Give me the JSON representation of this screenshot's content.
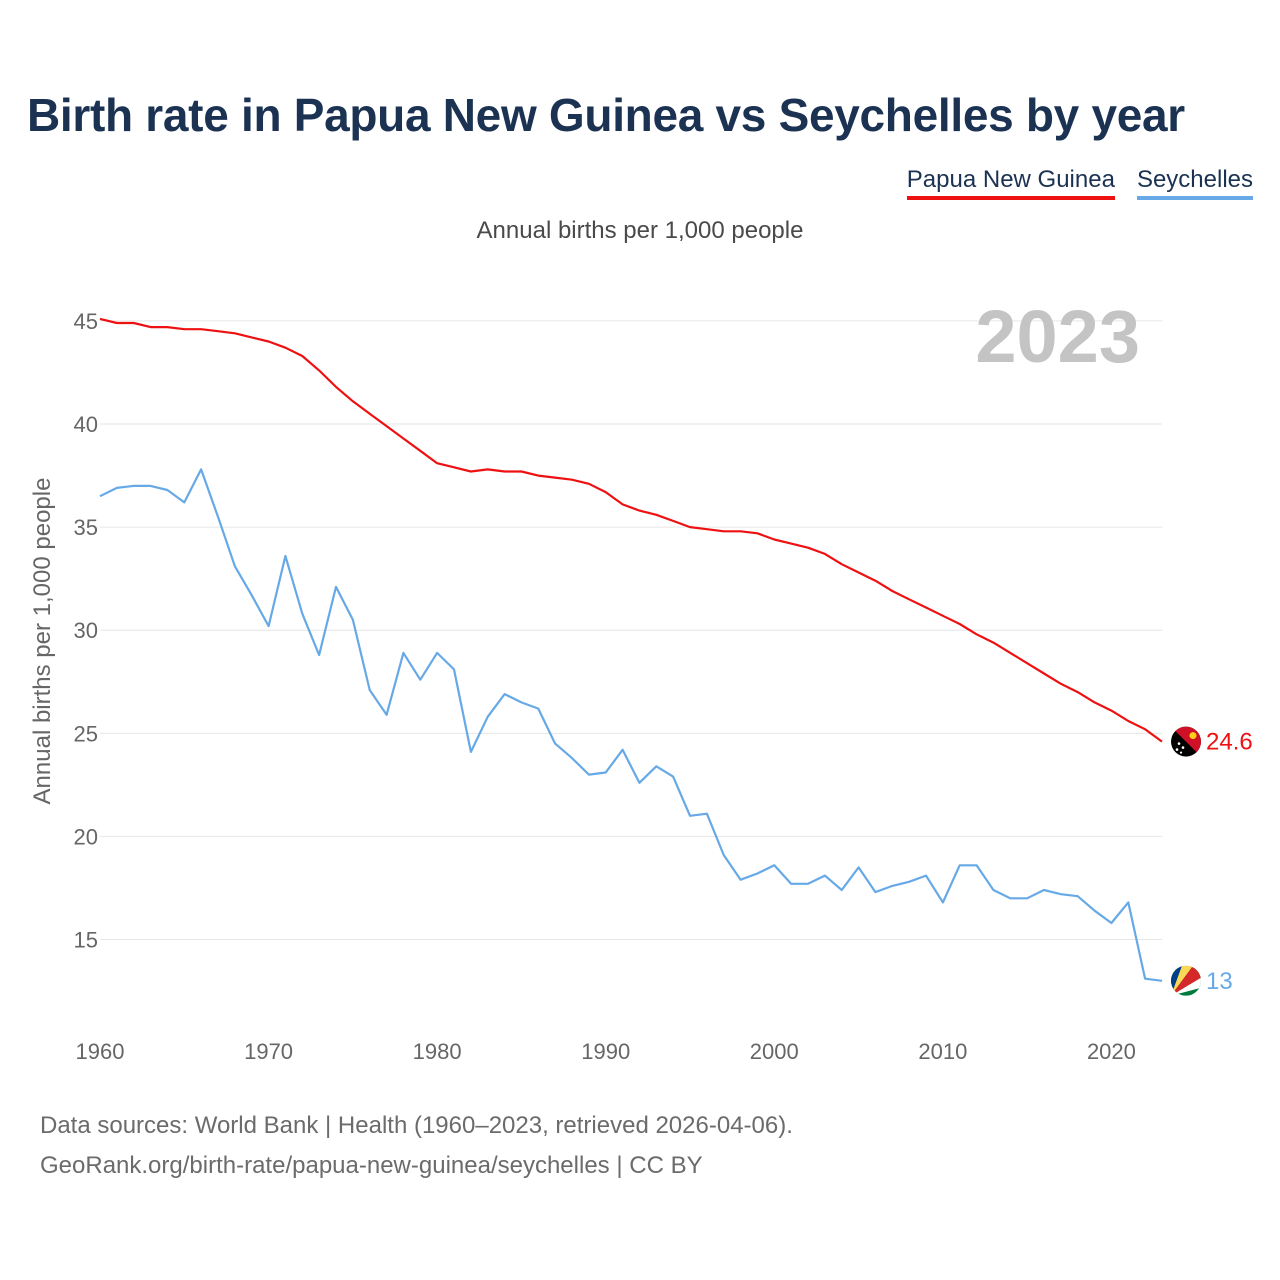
{
  "chart_data": {
    "type": "line",
    "title": "Birth rate in Papua New Guinea vs Seychelles by year",
    "subtitle": "Annual births per 1,000 people",
    "ylabel": "Annual births per 1,000 people",
    "xlabel": "",
    "year_label": "2023",
    "xlim": [
      1960,
      2023
    ],
    "ylim": [
      11,
      46.5
    ],
    "x_ticks": [
      1960,
      1970,
      1980,
      1990,
      2000,
      2010,
      2020
    ],
    "y_ticks": [
      15,
      20,
      25,
      30,
      35,
      40,
      45
    ],
    "grid": true,
    "legend_position": "top-right",
    "x": [
      1960,
      1961,
      1962,
      1963,
      1964,
      1965,
      1966,
      1967,
      1968,
      1969,
      1970,
      1971,
      1972,
      1973,
      1974,
      1975,
      1976,
      1977,
      1978,
      1979,
      1980,
      1981,
      1982,
      1983,
      1984,
      1985,
      1986,
      1987,
      1988,
      1989,
      1990,
      1991,
      1992,
      1993,
      1994,
      1995,
      1996,
      1997,
      1998,
      1999,
      2000,
      2001,
      2002,
      2003,
      2004,
      2005,
      2006,
      2007,
      2008,
      2009,
      2010,
      2011,
      2012,
      2013,
      2014,
      2015,
      2016,
      2017,
      2018,
      2019,
      2020,
      2021,
      2022,
      2023
    ],
    "series": [
      {
        "name": "Papua New Guinea",
        "color": "#ee1111",
        "end_label": "24.6",
        "values": [
          45.1,
          44.9,
          44.9,
          44.7,
          44.7,
          44.6,
          44.6,
          44.5,
          44.4,
          44.2,
          44.0,
          43.7,
          43.3,
          42.6,
          41.8,
          41.1,
          40.5,
          39.9,
          39.3,
          38.7,
          38.1,
          37.9,
          37.7,
          37.8,
          37.7,
          37.7,
          37.5,
          37.4,
          37.3,
          37.1,
          36.7,
          36.1,
          35.8,
          35.6,
          35.3,
          35.0,
          34.9,
          34.8,
          34.8,
          34.7,
          34.4,
          34.2,
          34.0,
          33.7,
          33.2,
          32.8,
          32.4,
          31.9,
          31.5,
          31.1,
          30.7,
          30.3,
          29.8,
          29.4,
          28.9,
          28.4,
          27.9,
          27.4,
          27.0,
          26.5,
          26.1,
          25.6,
          25.2,
          24.6
        ]
      },
      {
        "name": "Seychelles",
        "color": "#66a9e6",
        "end_label": "13",
        "values": [
          36.5,
          36.9,
          37.0,
          37.0,
          36.8,
          36.2,
          37.8,
          35.5,
          33.1,
          31.7,
          30.2,
          33.6,
          30.8,
          28.8,
          32.1,
          30.5,
          27.1,
          25.9,
          28.9,
          27.6,
          28.9,
          28.1,
          24.1,
          25.8,
          26.9,
          26.5,
          26.2,
          24.5,
          23.8,
          23.0,
          23.1,
          24.2,
          22.6,
          23.4,
          22.9,
          21.0,
          21.1,
          19.1,
          17.9,
          18.2,
          18.6,
          17.7,
          17.7,
          18.1,
          17.4,
          18.5,
          17.3,
          17.6,
          17.8,
          18.1,
          16.8,
          18.6,
          18.6,
          17.4,
          17.0,
          17.0,
          17.4,
          17.2,
          17.1,
          16.4,
          15.8,
          16.8,
          13.1,
          13.0
        ]
      }
    ],
    "footer_line1": "Data sources: World Bank | Health (1960–2023, retrieved 2026-04-06).",
    "footer_line2": "GeoRank.org/birth-rate/papua-new-guinea/seychelles | CC BY"
  }
}
